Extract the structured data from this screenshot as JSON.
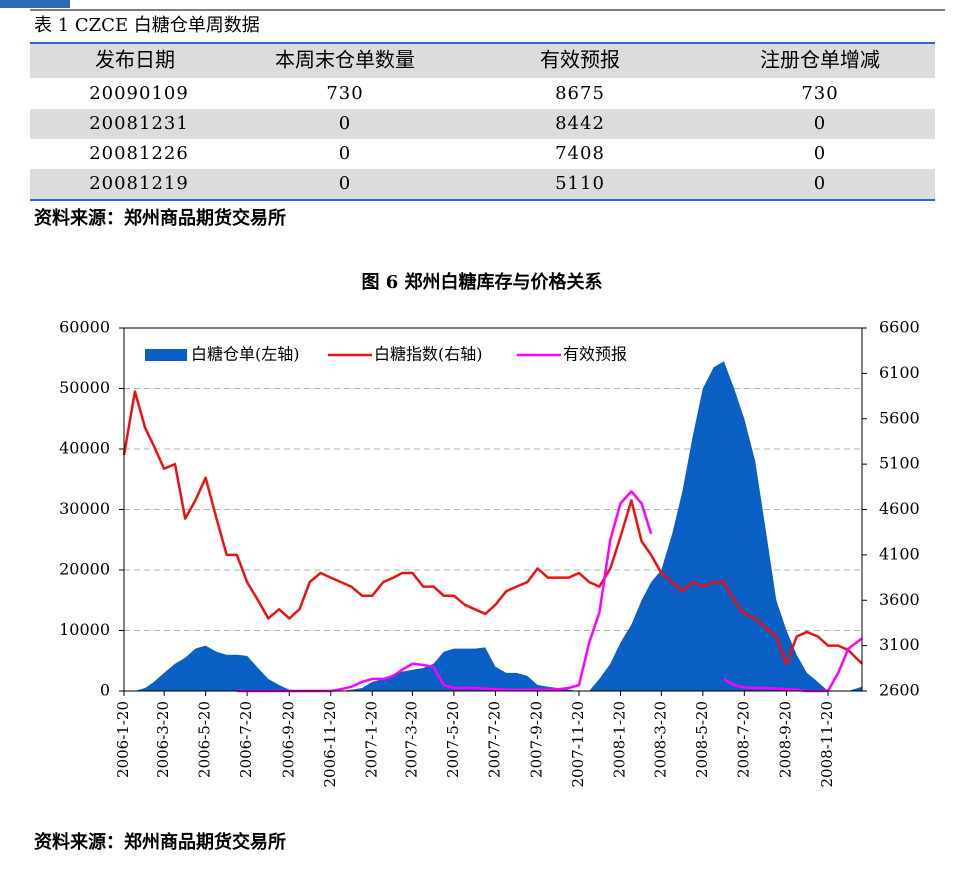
{
  "table_title": "表 1 CZCE 白糖仓单周数据",
  "table": {
    "header": [
      "发布日期",
      "本周末仓单数量",
      "有效预报",
      "注册仓单增减"
    ],
    "rows": [
      [
        "20090109",
        "730",
        "8675",
        "730"
      ],
      [
        "20081231",
        "0",
        "8442",
        "0"
      ],
      [
        "20081226",
        "0",
        "7408",
        "0"
      ],
      [
        "20081219",
        "0",
        "5110",
        "0"
      ]
    ]
  },
  "table_source": "资料来源：郑州商品期货交易所",
  "chart_data": {
    "type": "area-line",
    "title": "图 6 郑州白糖库存与价格关系",
    "x": [
      "2006-1-20",
      "2006-2-5",
      "2006-2-20",
      "2006-3-5",
      "2006-3-20",
      "2006-4-5",
      "2006-4-20",
      "2006-5-5",
      "2006-5-20",
      "2006-6-5",
      "2006-6-20",
      "2006-7-5",
      "2006-7-20",
      "2006-8-5",
      "2006-8-20",
      "2006-9-5",
      "2006-9-20",
      "2006-10-5",
      "2006-10-20",
      "2006-11-5",
      "2006-11-20",
      "2006-12-5",
      "2006-12-20",
      "2007-1-5",
      "2007-1-20",
      "2007-2-5",
      "2007-2-20",
      "2007-3-5",
      "2007-3-20",
      "2007-4-5",
      "2007-4-20",
      "2007-5-5",
      "2007-5-20",
      "2007-6-5",
      "2007-6-20",
      "2007-7-5",
      "2007-7-20",
      "2007-8-5",
      "2007-8-20",
      "2007-9-5",
      "2007-9-20",
      "2007-10-5",
      "2007-10-20",
      "2007-11-5",
      "2007-11-20",
      "2007-12-5",
      "2007-12-20",
      "2008-1-5",
      "2008-1-20",
      "2008-2-5",
      "2008-2-20",
      "2008-3-5",
      "2008-3-20",
      "2008-4-5",
      "2008-4-20",
      "2008-5-5",
      "2008-5-20",
      "2008-6-5",
      "2008-6-20",
      "2008-7-5",
      "2008-7-20",
      "2008-8-5",
      "2008-8-20",
      "2008-9-5",
      "2008-9-20",
      "2008-10-5",
      "2008-10-20",
      "2008-11-5",
      "2008-11-20",
      "2008-12-5",
      "2008-12-20",
      "2009-1-9"
    ],
    "series": [
      {
        "name": "白糖仓单(左轴)",
        "color": "#0a5fc4",
        "kind": "area",
        "axis": "y",
        "values": [
          0,
          0,
          500,
          1500,
          3000,
          4500,
          5500,
          7000,
          7500,
          6500,
          6000,
          6000,
          5800,
          3800,
          2000,
          1000,
          200,
          0,
          0,
          0,
          0,
          0,
          200,
          500,
          1500,
          2000,
          2800,
          3200,
          3500,
          3800,
          4500,
          6500,
          7000,
          7000,
          7000,
          7200,
          4000,
          3000,
          3000,
          2500,
          1000,
          700,
          500,
          200,
          0,
          0,
          2000,
          4500,
          8000,
          11000,
          15000,
          18000,
          20000,
          26000,
          33000,
          42000,
          50000,
          53500,
          54500,
          50000,
          45000,
          38000,
          27000,
          15000,
          10000,
          6000,
          3000,
          1500,
          0,
          0,
          0,
          730
        ]
      },
      {
        "name": "白糖指数(右轴)",
        "color": "#ee1111",
        "kind": "line",
        "axis": "y2",
        "values": [
          5200,
          5900,
          5500,
          5300,
          5050,
          5100,
          4500,
          4700,
          4950,
          4500,
          4100,
          4100,
          3800,
          3600,
          3400,
          3500,
          3400,
          3500,
          3800,
          3900,
          3850,
          3800,
          3750,
          3650,
          3650,
          3800,
          3850,
          3900,
          3900,
          3750,
          3750,
          3650,
          3650,
          3550,
          3500,
          3450,
          3550,
          3700,
          3750,
          3800,
          3950,
          3850,
          3850,
          3850,
          3900,
          3800,
          3750,
          3950,
          4300,
          4700,
          4250,
          4100,
          3900,
          3800,
          3700,
          3800,
          3750,
          3800,
          3800,
          3600,
          3450,
          3400,
          3300,
          3200,
          2900,
          3200,
          3250,
          3200,
          3100,
          3100,
          3050,
          2900
        ]
      },
      {
        "name": "有效预报",
        "color": "#ff00ff",
        "kind": "line",
        "axis": "y",
        "values": [
          null,
          null,
          null,
          null,
          null,
          null,
          null,
          null,
          null,
          null,
          null,
          0,
          0,
          0,
          0,
          0,
          0,
          0,
          0,
          0,
          0,
          300,
          700,
          1500,
          2000,
          2000,
          2500,
          3500,
          4500,
          4300,
          4000,
          1000,
          500,
          500,
          500,
          400,
          300,
          200,
          200,
          200,
          200,
          200,
          300,
          500,
          1000,
          8000,
          13000,
          25000,
          31000,
          33000,
          31000,
          26000,
          null,
          null,
          null,
          null,
          null,
          null,
          2000,
          1000,
          600,
          500,
          500,
          400,
          300,
          200,
          0,
          0,
          0,
          3000,
          7000,
          8700
        ]
      }
    ],
    "xlim": [
      "2006-1-20",
      "2009-1-9"
    ],
    "xticks": [
      "2006-1-20",
      "2006-3-20",
      "2006-5-20",
      "2006-7-20",
      "2006-9-20",
      "2006-11-20",
      "2007-1-20",
      "2007-3-20",
      "2007-5-20",
      "2007-7-20",
      "2007-9-20",
      "2007-11-20",
      "2008-1-20",
      "2008-3-20",
      "2008-5-20",
      "2008-7-20",
      "2008-9-20",
      "2008-11-20"
    ],
    "ylim": [
      0,
      60000
    ],
    "yticks": [
      0,
      10000,
      20000,
      30000,
      40000,
      50000,
      60000
    ],
    "y2lim": [
      2600,
      6600
    ],
    "y2ticks": [
      2600,
      3100,
      3600,
      4100,
      4600,
      5100,
      5600,
      6100,
      6600
    ],
    "grid": true,
    "source": "资料来源：郑州商品期货交易所"
  }
}
